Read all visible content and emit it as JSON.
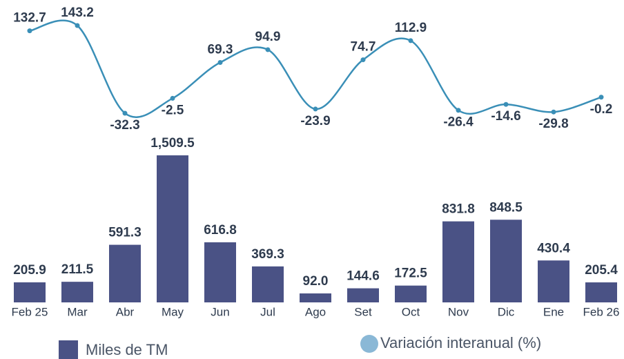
{
  "chart_data": {
    "type": "bar+line",
    "categories": [
      "Feb 25",
      "Mar",
      "Abr",
      "May",
      "Jun",
      "Jul",
      "Ago",
      "Set",
      "Oct",
      "Nov",
      "Dic",
      "Ene",
      "Feb 26"
    ],
    "series": [
      {
        "name": "Miles  de TM",
        "type": "bar",
        "color": "#4a5285",
        "values": [
          205.9,
          211.5,
          591.3,
          1509.5,
          616.8,
          369.3,
          92.0,
          144.6,
          172.5,
          831.8,
          848.5,
          430.4,
          205.4
        ],
        "value_labels": [
          "205.9",
          "211.5",
          "591.3",
          "1,509.5",
          "616.8",
          "369.3",
          "92.0",
          "144.6",
          "172.5",
          "831.8",
          "848.5",
          "430.4",
          "205.4"
        ]
      },
      {
        "name": "Variación interanual (%)",
        "type": "line",
        "color": "#3a8fb7",
        "legend_color": "#8ab8d6",
        "values": [
          132.7,
          143.2,
          -32.3,
          -2.5,
          69.3,
          94.9,
          -23.9,
          74.7,
          112.9,
          -26.4,
          -14.6,
          -29.8,
          -0.2
        ]
      }
    ]
  }
}
